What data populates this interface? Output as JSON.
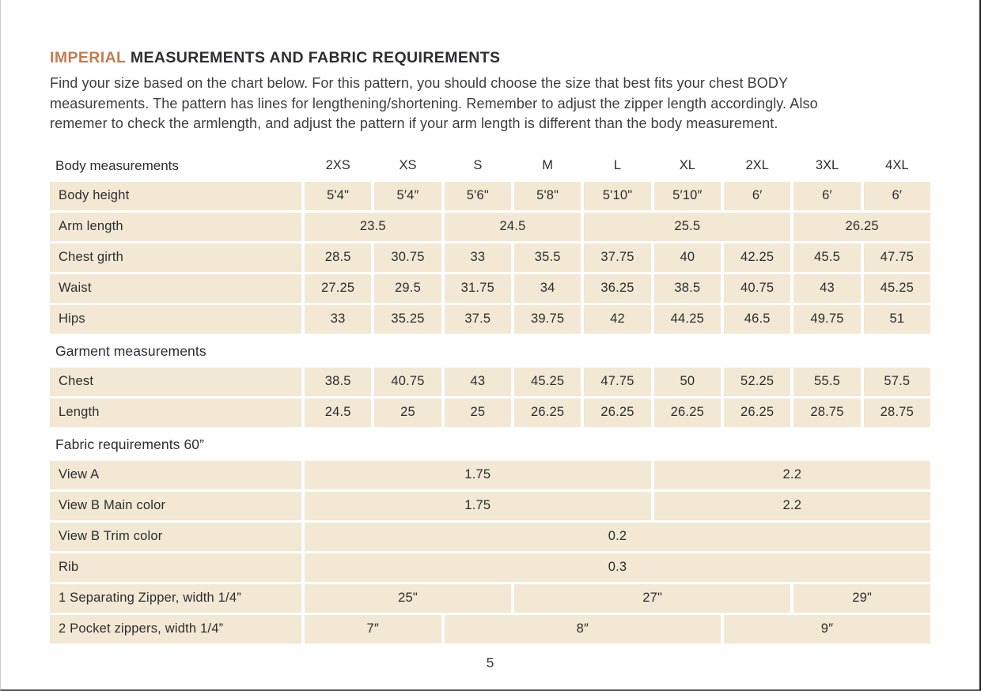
{
  "page": {
    "title_accent": "IMPERIAL",
    "title_main": "MEASUREMENTS AND FABRIC REQUIREMENTS",
    "intro_lines": [
      "Find your size based on the chart below. For this pattern, you should choose the size that best fits your chest BODY",
      "measurements. The pattern has lines for lengthening/shortening. Remember to adjust the zipper length accordingly. Also",
      "rememer to check the armlength, and adjust the pattern if your arm length is different than the body measurement."
    ],
    "page_number": "5"
  },
  "colors": {
    "accent_orange": "#c57c50",
    "cell_beige": "#f2e8d4",
    "text_dark": "#2e2e30"
  },
  "table": {
    "size_columns": [
      "2XS",
      "XS",
      "S",
      "M",
      "L",
      "XL",
      "2XL",
      "3XL",
      "4XL"
    ],
    "sections": [
      {
        "title": "Body measurements",
        "show_size_columns": true,
        "rows": [
          {
            "label": "Body height",
            "cells": [
              {
                "v": "5'4\"",
                "s": 1
              },
              {
                "v": "5′4″",
                "s": 1
              },
              {
                "v": "5'6\"",
                "s": 1
              },
              {
                "v": "5'8\"",
                "s": 1
              },
              {
                "v": "5'10\"",
                "s": 1
              },
              {
                "v": "5′10″",
                "s": 1
              },
              {
                "v": "6′",
                "s": 1
              },
              {
                "v": "6′",
                "s": 1
              },
              {
                "v": "6′",
                "s": 1
              }
            ]
          },
          {
            "label": "Arm length",
            "cells": [
              {
                "v": "23.5",
                "s": 2
              },
              {
                "v": "24.5",
                "s": 2
              },
              {
                "v": "25.5",
                "s": 3
              },
              {
                "v": "26.25",
                "s": 2
              }
            ]
          },
          {
            "label": "Chest girth",
            "cells": [
              {
                "v": "28.5",
                "s": 1
              },
              {
                "v": "30.75",
                "s": 1
              },
              {
                "v": "33",
                "s": 1
              },
              {
                "v": "35.5",
                "s": 1
              },
              {
                "v": "37.75",
                "s": 1
              },
              {
                "v": "40",
                "s": 1
              },
              {
                "v": "42.25",
                "s": 1
              },
              {
                "v": "45.5",
                "s": 1
              },
              {
                "v": "47.75",
                "s": 1
              }
            ]
          },
          {
            "label": "Waist",
            "cells": [
              {
                "v": "27.25",
                "s": 1
              },
              {
                "v": "29.5",
                "s": 1
              },
              {
                "v": "31.75",
                "s": 1
              },
              {
                "v": "34",
                "s": 1
              },
              {
                "v": "36.25",
                "s": 1
              },
              {
                "v": "38.5",
                "s": 1
              },
              {
                "v": "40.75",
                "s": 1
              },
              {
                "v": "43",
                "s": 1
              },
              {
                "v": "45.25",
                "s": 1
              }
            ]
          },
          {
            "label": "Hips",
            "cells": [
              {
                "v": "33",
                "s": 1
              },
              {
                "v": "35.25",
                "s": 1
              },
              {
                "v": "37.5",
                "s": 1
              },
              {
                "v": "39.75",
                "s": 1
              },
              {
                "v": "42",
                "s": 1
              },
              {
                "v": "44.25",
                "s": 1
              },
              {
                "v": "46.5",
                "s": 1
              },
              {
                "v": "49.75",
                "s": 1
              },
              {
                "v": "51",
                "s": 1
              }
            ]
          }
        ]
      },
      {
        "title": "Garment measurements",
        "show_size_columns": false,
        "rows": [
          {
            "label": "Chest",
            "cells": [
              {
                "v": "38.5",
                "s": 1
              },
              {
                "v": "40.75",
                "s": 1
              },
              {
                "v": "43",
                "s": 1
              },
              {
                "v": "45.25",
                "s": 1
              },
              {
                "v": "47.75",
                "s": 1
              },
              {
                "v": "50",
                "s": 1
              },
              {
                "v": "52.25",
                "s": 1
              },
              {
                "v": "55.5",
                "s": 1
              },
              {
                "v": "57.5",
                "s": 1
              }
            ]
          },
          {
            "label": "Length",
            "cells": [
              {
                "v": "24.5",
                "s": 1
              },
              {
                "v": "25",
                "s": 1
              },
              {
                "v": "25",
                "s": 1
              },
              {
                "v": "26.25",
                "s": 1
              },
              {
                "v": "26.25",
                "s": 1
              },
              {
                "v": "26.25",
                "s": 1
              },
              {
                "v": "26.25",
                "s": 1
              },
              {
                "v": "28.75",
                "s": 1
              },
              {
                "v": "28.75",
                "s": 1
              }
            ]
          }
        ]
      },
      {
        "title": "Fabric requirements 60”",
        "show_size_columns": false,
        "rows": [
          {
            "label": "View A",
            "cells": [
              {
                "v": "1.75",
                "s": 5
              },
              {
                "v": "2.2",
                "s": 4
              }
            ]
          },
          {
            "label": "View B Main color",
            "cells": [
              {
                "v": "1.75",
                "s": 5
              },
              {
                "v": "2.2",
                "s": 4
              }
            ]
          },
          {
            "label": "View B Trim color",
            "cells": [
              {
                "v": "0.2",
                "s": 9
              }
            ]
          },
          {
            "label": "Rib",
            "cells": [
              {
                "v": "0.3",
                "s": 9
              }
            ]
          },
          {
            "label": "1 Separating Zipper, width 1/4”",
            "cells": [
              {
                "v": "25\"",
                "s": 3
              },
              {
                "v": "27\"",
                "s": 4
              },
              {
                "v": "29\"",
                "s": 2
              }
            ]
          },
          {
            "label": "2 Pocket zippers, width 1/4”",
            "cells": [
              {
                "v": "7″",
                "s": 2
              },
              {
                "v": "8″",
                "s": 4
              },
              {
                "v": "9″",
                "s": 3
              }
            ]
          }
        ]
      }
    ]
  }
}
